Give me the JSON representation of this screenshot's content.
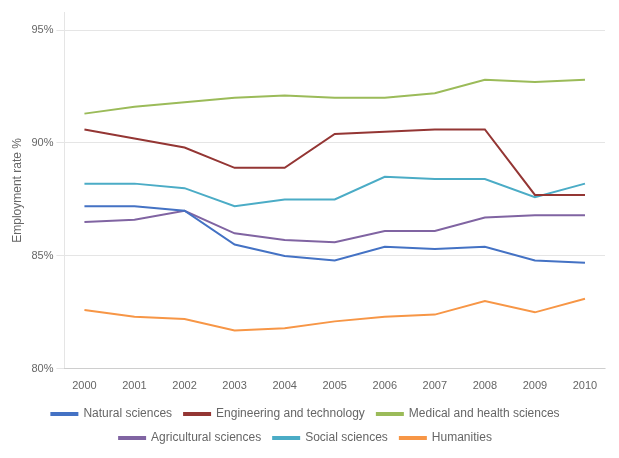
{
  "chart_data": {
    "type": "line",
    "x": [
      2000,
      2001,
      2002,
      2003,
      2004,
      2005,
      2006,
      2007,
      2008,
      2009,
      2010
    ],
    "series": [
      {
        "name": "Natural sciences",
        "color": "#4472C4",
        "values": [
          87.2,
          87.2,
          87.0,
          85.5,
          85.0,
          84.8,
          85.4,
          85.3,
          85.4,
          84.8,
          84.7
        ]
      },
      {
        "name": "Engineering and technology",
        "color": "#943634",
        "values": [
          90.6,
          90.2,
          89.8,
          88.9,
          88.9,
          90.4,
          90.5,
          90.6,
          90.6,
          87.7,
          87.7
        ]
      },
      {
        "name": "Medical and health sciences",
        "color": "#9BBB59",
        "values": [
          91.3,
          91.6,
          91.8,
          92.0,
          92.1,
          92.0,
          92.0,
          92.2,
          92.8,
          92.7,
          92.8
        ]
      },
      {
        "name": "Agricultural sciences",
        "color": "#8064A2",
        "values": [
          86.5,
          86.6,
          87.0,
          86.0,
          85.7,
          85.6,
          86.1,
          86.1,
          86.7,
          86.8,
          86.8
        ]
      },
      {
        "name": "Social sciences",
        "color": "#4BACC6",
        "values": [
          88.2,
          88.2,
          88.0,
          87.2,
          87.5,
          87.5,
          88.5,
          88.4,
          88.4,
          87.6,
          88.2
        ]
      },
      {
        "name": "Humanities",
        "color": "#F79646",
        "values": [
          82.6,
          82.3,
          82.2,
          81.7,
          81.8,
          82.1,
          82.3,
          82.4,
          83.0,
          82.5,
          83.1
        ]
      }
    ],
    "ylabel": "Employment rate %",
    "xlim": [
      1999.6,
      2010.4
    ],
    "xticks": [
      2000,
      2001,
      2002,
      2003,
      2004,
      2005,
      2006,
      2007,
      2008,
      2009,
      2010
    ],
    "ylim": [
      80,
      95.8
    ],
    "yticks": [
      {
        "value": 80,
        "label": "80%"
      },
      {
        "value": 85,
        "label": "85%"
      },
      {
        "value": 90,
        "label": "90%"
      },
      {
        "value": 95,
        "label": "95%"
      }
    ],
    "grid": "y",
    "legend": "bottom"
  }
}
